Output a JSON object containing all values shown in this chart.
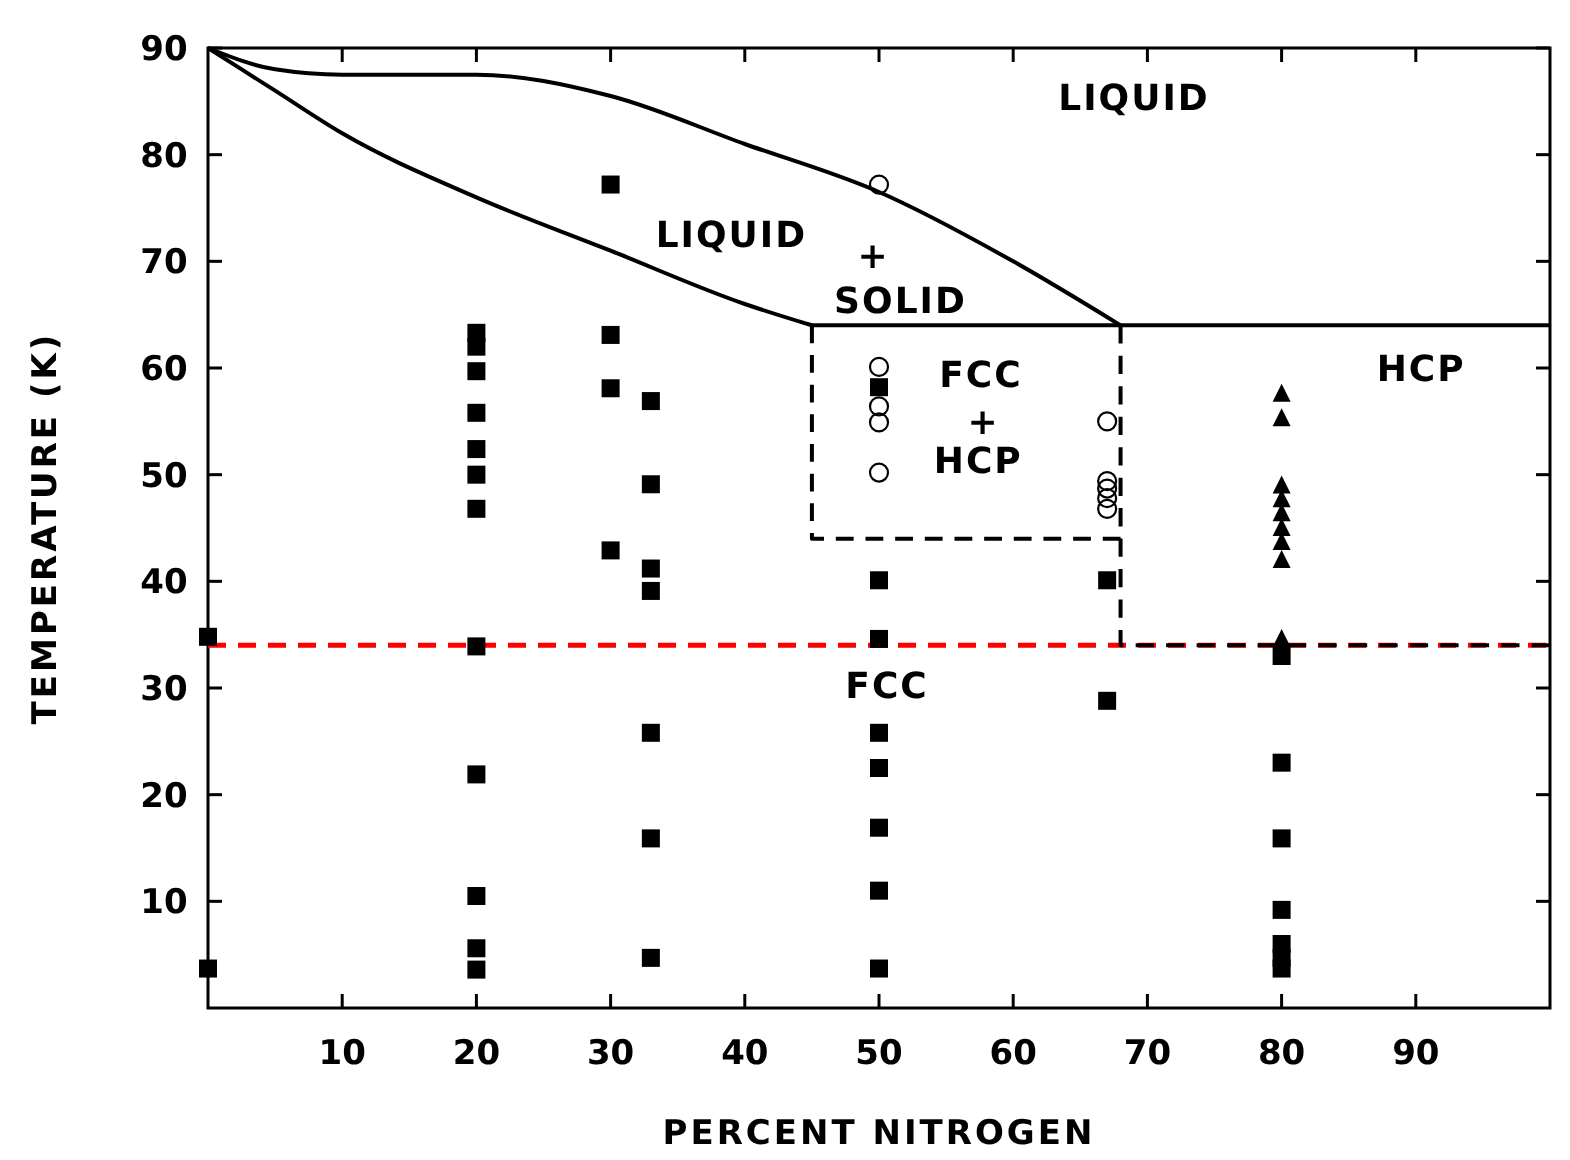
{
  "chart_data": {
    "type": "scatter",
    "xlabel": "PERCENT NITROGEN",
    "ylabel": "TEMPERATURE (K)",
    "xlim": [
      0,
      100
    ],
    "ylim": [
      0,
      90
    ],
    "xticks": [
      10,
      20,
      30,
      40,
      50,
      60,
      70,
      80,
      90
    ],
    "yticks": [
      10,
      20,
      30,
      40,
      50,
      60,
      70,
      80,
      90
    ],
    "grid": false,
    "series": [
      {
        "marker": "square",
        "color": "#000000",
        "x": [
          0,
          0,
          20,
          20,
          20,
          20,
          20,
          20,
          20,
          20,
          20,
          20,
          20,
          20,
          30,
          30,
          30,
          30,
          33,
          33,
          33,
          33,
          33,
          33,
          33,
          50,
          50,
          50,
          50,
          50,
          50,
          50,
          50,
          67,
          67,
          80,
          80,
          80,
          80,
          80,
          80,
          80
        ],
        "values": [
          3.7,
          34.8,
          63.3,
          62,
          59.7,
          55.8,
          52.4,
          50,
          46.8,
          33.9,
          21.9,
          10.5,
          5.6,
          3.6,
          77.2,
          63.1,
          58.1,
          42.9,
          56.9,
          49.1,
          41.2,
          39.1,
          25.8,
          15.9,
          4.7,
          58.2,
          40.1,
          34.6,
          25.8,
          22.5,
          16.9,
          11,
          3.7,
          40.1,
          28.8,
          33,
          23,
          15.9,
          9.2,
          6,
          4.7,
          3.7
        ]
      },
      {
        "marker": "circle",
        "color": "#000000",
        "x": [
          50,
          50,
          50,
          50,
          50,
          67,
          67,
          67,
          67,
          67
        ],
        "values": [
          77.2,
          60.1,
          56.4,
          54.9,
          50.2,
          55,
          49.4,
          48.7,
          47.8,
          46.8
        ]
      },
      {
        "marker": "triangle",
        "color": "#000000",
        "x": [
          80,
          80,
          80,
          80,
          80,
          80,
          80,
          80,
          80
        ],
        "values": [
          57.5,
          55.2,
          48.9,
          47.6,
          46.3,
          44.9,
          43.6,
          41.9,
          34.5
        ]
      },
      {
        "type": "line",
        "line_style": "solid",
        "color": "#000000",
        "x": [
          0,
          5,
          10,
          20,
          30,
          40,
          50,
          60,
          68
        ],
        "values": [
          90,
          88,
          87.5,
          87.5,
          85.5,
          81,
          76.5,
          70,
          64
        ]
      },
      {
        "type": "line",
        "line_style": "solid",
        "color": "#000000",
        "x": [
          0,
          5,
          10,
          20,
          30,
          40,
          45
        ],
        "values": [
          90,
          86,
          82,
          76,
          71,
          66,
          64
        ]
      },
      {
        "type": "line",
        "line_style": "solid",
        "color": "#000000",
        "x": [
          45,
          100
        ],
        "values": [
          64,
          64
        ]
      },
      {
        "type": "line",
        "line_style": "dashed",
        "color": "#000000",
        "x": [
          45,
          45,
          68
        ],
        "values": [
          64,
          44,
          44
        ]
      },
      {
        "type": "line",
        "line_style": "dashed",
        "color": "#000000",
        "x": [
          68,
          68,
          100
        ],
        "values": [
          64,
          34,
          34
        ]
      }
    ],
    "ref_lines": [
      {
        "axis": "y",
        "value": 34,
        "color": "#ff0000",
        "line_style": "dashed"
      }
    ],
    "annotations": [
      "LIQUID",
      "LIQUID",
      "+",
      "SOLID",
      "FCC",
      "+",
      "HCP",
      "HCP",
      "FCC"
    ]
  }
}
